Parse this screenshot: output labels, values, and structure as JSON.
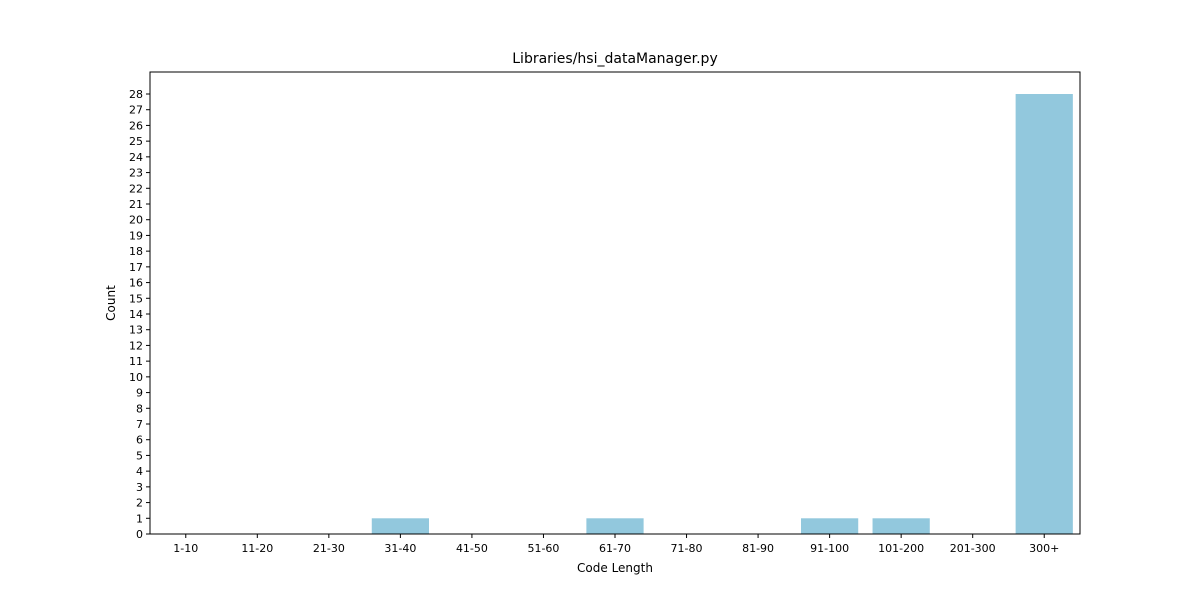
{
  "chart_data": {
    "type": "bar",
    "title": "Libraries/hsi_dataManager.py",
    "xlabel": "Code Length",
    "ylabel": "Count",
    "categories": [
      "1-10",
      "11-20",
      "21-30",
      "31-40",
      "41-50",
      "51-60",
      "61-70",
      "71-80",
      "81-90",
      "91-100",
      "101-200",
      "201-300",
      "300+"
    ],
    "values": [
      0,
      0,
      0,
      1,
      0,
      0,
      1,
      0,
      0,
      1,
      1,
      0,
      28
    ],
    "ylim": [
      0,
      29.4
    ],
    "yticks": [
      0,
      1,
      2,
      3,
      4,
      5,
      6,
      7,
      8,
      9,
      10,
      11,
      12,
      13,
      14,
      15,
      16,
      17,
      18,
      19,
      20,
      21,
      22,
      23,
      24,
      25,
      26,
      27,
      28
    ],
    "bar_color": "#92c8dd",
    "grid": false,
    "legend": "none"
  }
}
